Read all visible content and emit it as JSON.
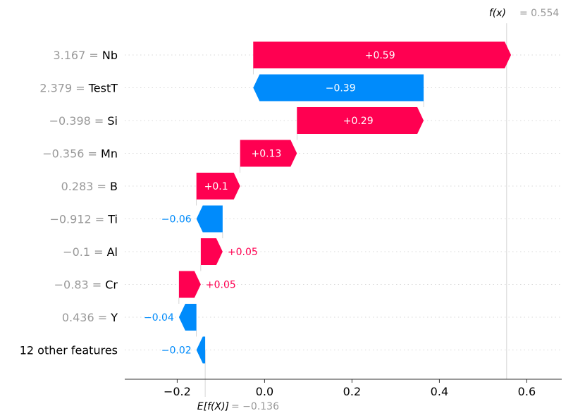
{
  "chart_data": {
    "type": "waterfall",
    "fx_label": "f(x)",
    "fx_value": "= 0.554",
    "fx": 0.554,
    "base_label": "E[f(X)]",
    "base_value_text": "= −0.136",
    "base": -0.136,
    "xlim": [
      -0.32,
      0.68
    ],
    "xticks": [
      {
        "v": -0.2,
        "label": "−0.2"
      },
      {
        "v": 0.0,
        "label": "0.0"
      },
      {
        "v": 0.2,
        "label": "0.2"
      },
      {
        "v": 0.4,
        "label": "0.4"
      },
      {
        "v": 0.6,
        "label": "0.6"
      }
    ],
    "colors": {
      "positive": "#ff0051",
      "negative": "#008bfb",
      "value_gray": "#999999",
      "name_black": "#000000"
    },
    "features": [
      {
        "value": "3.167 =",
        "name": "Nb",
        "contrib": 0.59,
        "label": "+0.59"
      },
      {
        "value": "2.379 =",
        "name": "TestT",
        "contrib": -0.39,
        "label": "−0.39"
      },
      {
        "value": "−0.398 =",
        "name": "Si",
        "contrib": 0.29,
        "label": "+0.29"
      },
      {
        "value": "−0.356 =",
        "name": "Mn",
        "contrib": 0.13,
        "label": "+0.13"
      },
      {
        "value": "0.283 =",
        "name": "B",
        "contrib": 0.1,
        "label": "+0.1"
      },
      {
        "value": "−0.912 =",
        "name": "Ti",
        "contrib": -0.06,
        "label": "−0.06"
      },
      {
        "value": "−0.1 =",
        "name": "Al",
        "contrib": 0.05,
        "label": "+0.05"
      },
      {
        "value": "−0.83 =",
        "name": "Cr",
        "contrib": 0.05,
        "label": "+0.05"
      },
      {
        "value": "0.436 =",
        "name": "Y",
        "contrib": -0.04,
        "label": "−0.04"
      },
      {
        "value": "",
        "name": "12 other features",
        "contrib": -0.02,
        "label": "−0.02"
      }
    ]
  }
}
